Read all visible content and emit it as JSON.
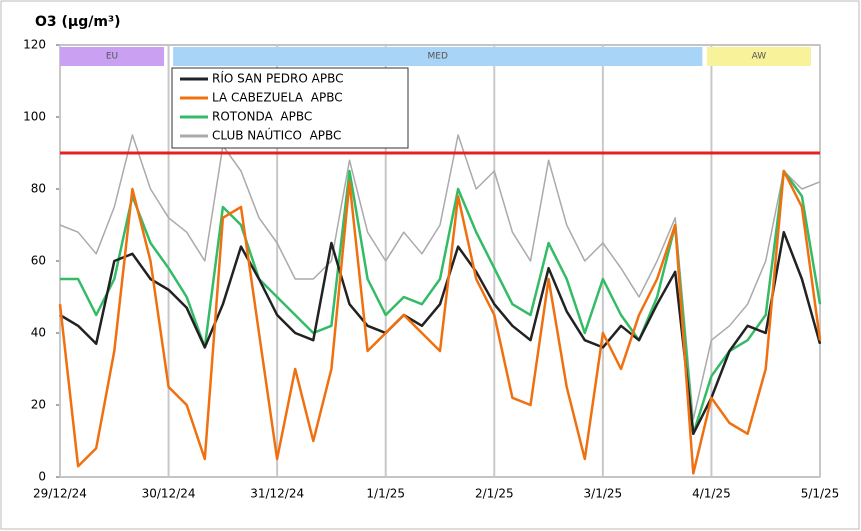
{
  "chart_data": {
    "type": "line",
    "title": "O3 (μg/m³)",
    "x": [
      0,
      4,
      8,
      12,
      16,
      20,
      24,
      28,
      32,
      36,
      40,
      44,
      48,
      52,
      56,
      60,
      64,
      68,
      72,
      76,
      80,
      84,
      88,
      92,
      96,
      100,
      104,
      108,
      112,
      116,
      120,
      124,
      128,
      132,
      136,
      140,
      144,
      148,
      152,
      156,
      160,
      164,
      168
    ],
    "xlim": [
      0,
      168
    ],
    "xticks": [
      {
        "value": 0,
        "label": "29/12/24"
      },
      {
        "value": 24,
        "label": "30/12/24"
      },
      {
        "value": 48,
        "label": "31/12/24"
      },
      {
        "value": 72,
        "label": "1/1/25"
      },
      {
        "value": 96,
        "label": "2/1/25"
      },
      {
        "value": 120,
        "label": "3/1/25"
      },
      {
        "value": 144,
        "label": "4/1/25"
      },
      {
        "value": 168,
        "label": "5/1/25"
      }
    ],
    "ylim": [
      0,
      120
    ],
    "yticks": [
      0,
      20,
      40,
      60,
      80,
      100,
      120
    ],
    "series": [
      {
        "name": "RÍO SAN PEDRO APBC",
        "color": "#222222",
        "values": [
          45,
          42,
          37,
          60,
          62,
          55,
          52,
          47,
          36,
          48,
          64,
          55,
          45,
          40,
          38,
          65,
          48,
          42,
          40,
          45,
          42,
          48,
          64,
          57,
          48,
          42,
          38,
          58,
          46,
          38,
          36,
          42,
          38,
          48,
          57,
          12,
          22,
          35,
          42,
          40,
          68,
          55,
          37
        ]
      },
      {
        "name": "LA CABEZUELA  APBC",
        "color": "#f07010",
        "values": [
          48,
          3,
          8,
          35,
          80,
          60,
          25,
          20,
          5,
          72,
          75,
          40,
          5,
          30,
          10,
          30,
          82,
          35,
          40,
          45,
          40,
          35,
          78,
          55,
          45,
          22,
          20,
          55,
          25,
          5,
          40,
          30,
          45,
          55,
          70,
          1,
          22,
          15,
          12,
          30,
          85,
          75,
          38
        ]
      },
      {
        "name": "ROTONDA  APBC",
        "color": "#33bb66",
        "values": [
          55,
          55,
          45,
          55,
          78,
          65,
          58,
          50,
          36,
          75,
          70,
          55,
          50,
          45,
          40,
          42,
          85,
          55,
          45,
          50,
          48,
          55,
          80,
          68,
          58,
          48,
          45,
          65,
          55,
          40,
          55,
          45,
          38,
          50,
          70,
          12,
          28,
          35,
          38,
          45,
          85,
          78,
          48
        ]
      },
      {
        "name": "CLUB NAÚTICO  APBC",
        "color": "#aaaaaa",
        "values": [
          70,
          68,
          62,
          75,
          95,
          80,
          72,
          68,
          60,
          92,
          85,
          72,
          65,
          55,
          55,
          60,
          88,
          68,
          60,
          68,
          62,
          70,
          95,
          80,
          85,
          68,
          60,
          88,
          70,
          60,
          65,
          58,
          50,
          60,
          72,
          16,
          38,
          42,
          48,
          60,
          85,
          80,
          82
        ]
      }
    ],
    "threshold": {
      "value": 90,
      "color": "#e52020"
    },
    "periods": [
      {
        "label": "EU",
        "start": 0,
        "end": 23,
        "color": "#c9a0f2"
      },
      {
        "label": "MED",
        "start": 25,
        "end": 142,
        "color": "#a8d4f7"
      },
      {
        "label": "AW",
        "start": 143,
        "end": 166,
        "color": "#f8f29a"
      }
    ],
    "grid": true
  }
}
